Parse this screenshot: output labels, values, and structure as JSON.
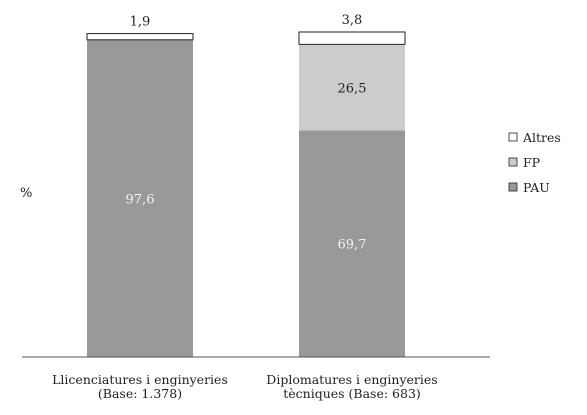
{
  "chart_data": {
    "type": "bar",
    "stacked": true,
    "ylabel": "%",
    "ylim": [
      0,
      100
    ],
    "grid": false,
    "legend_position": "right",
    "categories": [
      [
        "Llicenciatures i enginyeries",
        "(Base: 1.378)"
      ],
      [
        "Diplomatures i enginyeries",
        "tècniques (Base: 683)"
      ]
    ],
    "series": [
      {
        "name": "PAU",
        "values": [
          97.6,
          69.7
        ],
        "labels": [
          "97,6",
          "69,7"
        ],
        "color": "#999999",
        "label_color": "#f2f2f2"
      },
      {
        "name": "FP",
        "values": [
          0,
          26.5
        ],
        "labels": [
          "",
          "26,5"
        ],
        "color": "#cccccc",
        "label_color": "#222222"
      },
      {
        "name": "Altres",
        "values": [
          1.9,
          3.8
        ],
        "labels": [
          "1,9",
          "3,8"
        ],
        "color": "#ffffff",
        "label_color": "#222222"
      }
    ]
  }
}
